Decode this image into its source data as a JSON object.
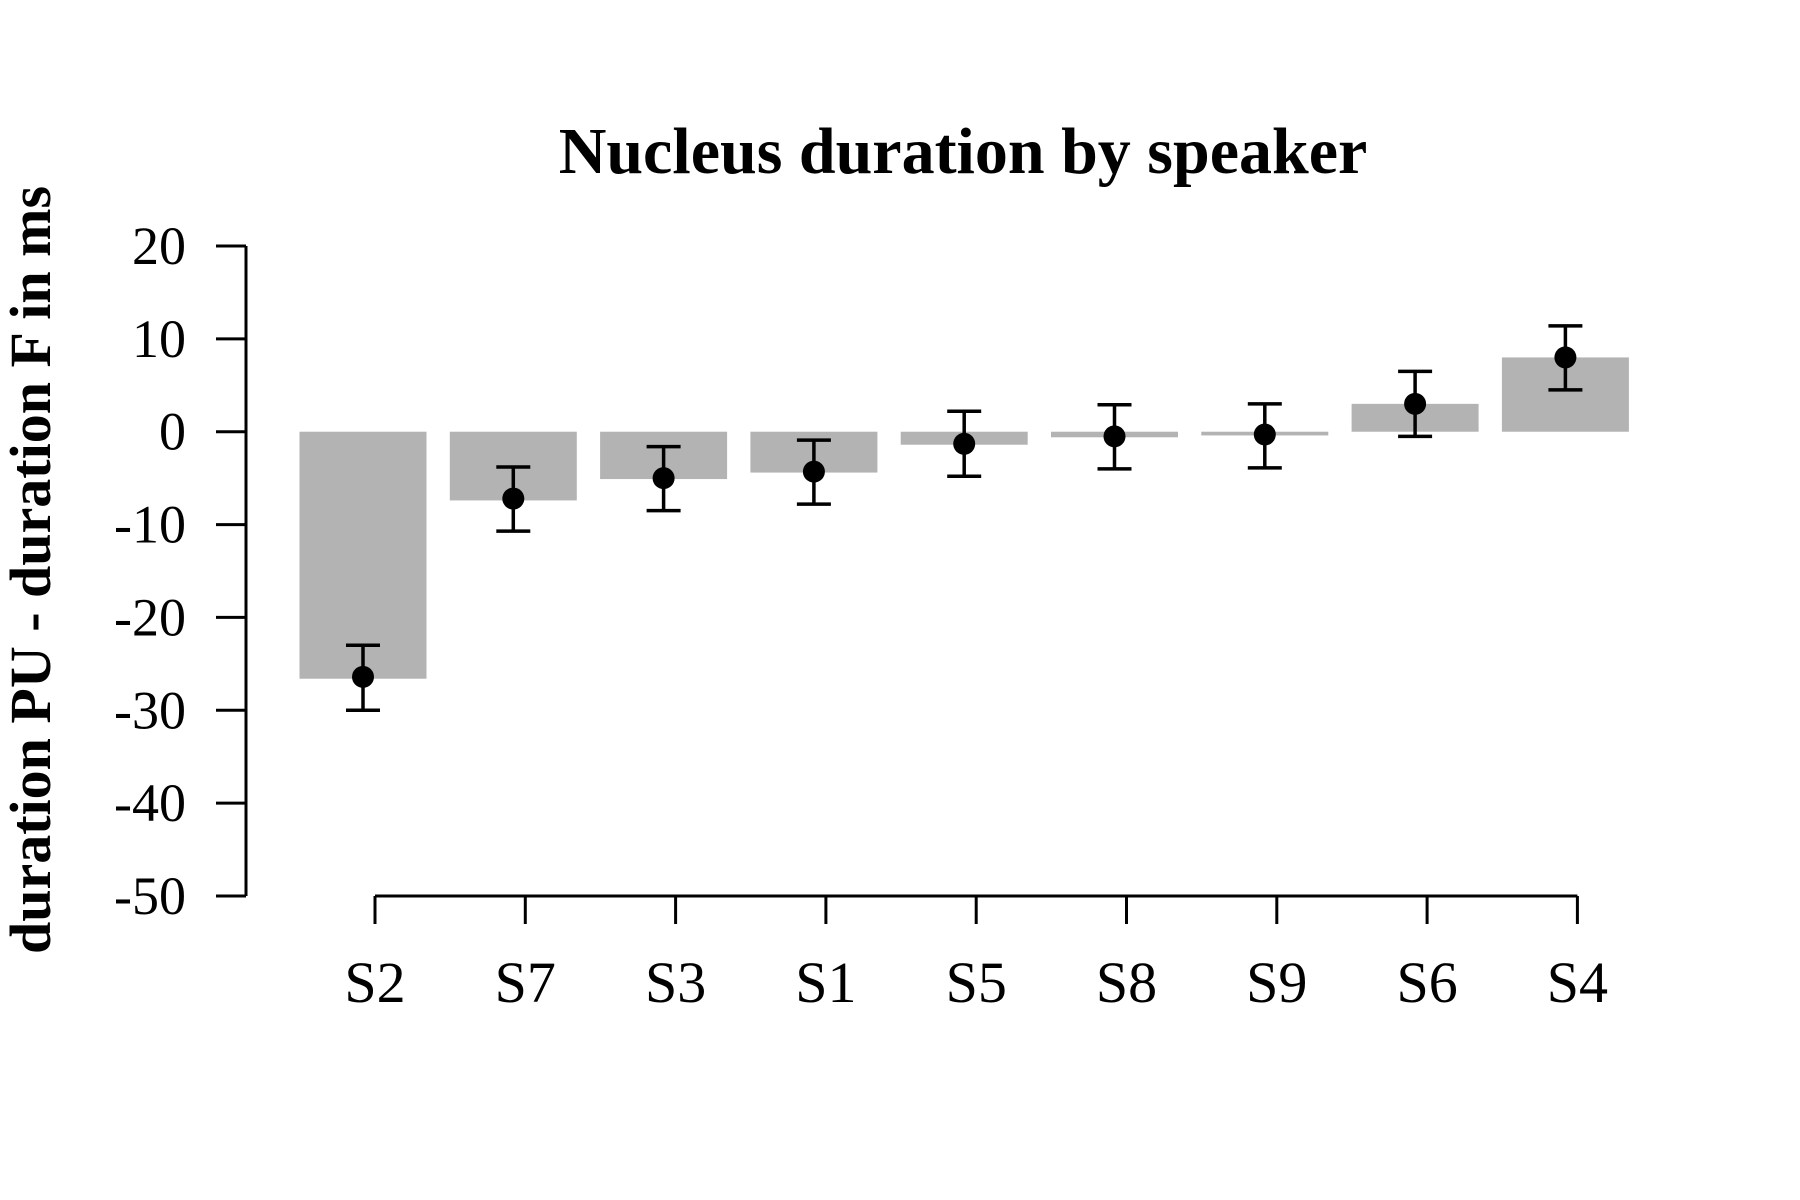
{
  "chart_data": {
    "type": "bar",
    "title": "Nucleus duration by speaker",
    "xlabel": "",
    "ylabel": "duration PU - duration F in ms",
    "categories": [
      "S2",
      "S7",
      "S3",
      "S1",
      "S5",
      "S8",
      "S9",
      "S6",
      "S4"
    ],
    "values": [
      -26.6,
      -7.4,
      -5.1,
      -4.4,
      -1.4,
      -0.6,
      -0.4,
      3.0,
      8.0
    ],
    "points": [
      -26.4,
      -7.2,
      -5.0,
      -4.3,
      -1.3,
      -0.5,
      -0.3,
      3.0,
      8.0
    ],
    "error_low": [
      -30.0,
      -10.7,
      -8.5,
      -7.8,
      -4.8,
      -4.0,
      -3.9,
      -0.5,
      4.5
    ],
    "error_high": [
      -23.0,
      -3.8,
      -1.6,
      -0.9,
      2.2,
      2.9,
      3.0,
      6.5,
      11.4
    ],
    "yticks": [
      20,
      10,
      0,
      -10,
      -20,
      -30,
      -40,
      -50
    ],
    "ylim": [
      -50,
      20
    ],
    "grid": false,
    "colors": {
      "bar": "#b3b3b3",
      "point": "#000000",
      "axis": "#000000"
    }
  }
}
